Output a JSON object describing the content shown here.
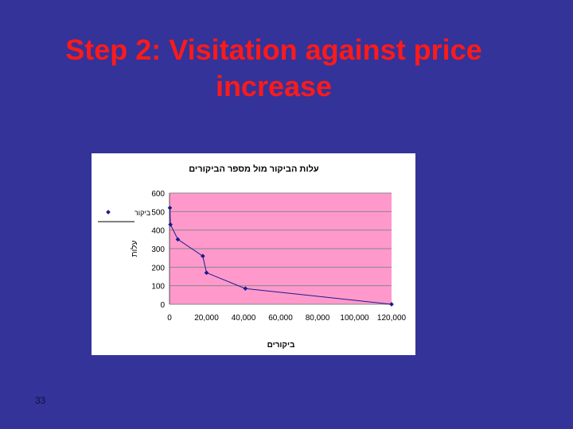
{
  "slide": {
    "title_line1": "Step 2: Visitation against price",
    "title_line2": "increase",
    "page_number": "33"
  },
  "colors": {
    "background": "#333399",
    "title": "#ff1a1a",
    "plot_area": "#ff99cc",
    "series": "#1a1a8c"
  },
  "chart_data": {
    "type": "scatter",
    "title": "עלות הביקור מול מספר הביקורים",
    "xlabel": "ביקורים",
    "ylabel": "עלות",
    "xlim": [
      0,
      120000
    ],
    "ylim": [
      0,
      600
    ],
    "x_ticks": [
      0,
      20000,
      40000,
      60000,
      80000,
      100000,
      120000
    ],
    "x_tick_labels": [
      "0",
      "20,000",
      "40,000",
      "60,000",
      "80,000",
      "100,000",
      "120,000"
    ],
    "y_ticks": [
      0,
      100,
      200,
      300,
      400,
      500,
      600
    ],
    "y_tick_labels": [
      "0",
      "100",
      "200",
      "300",
      "400",
      "500",
      "600"
    ],
    "grid": true,
    "legend": "left",
    "series": [
      {
        "name": "ביקור",
        "points": [
          {
            "x": 200,
            "y": 520
          },
          {
            "x": 500,
            "y": 430
          },
          {
            "x": 4500,
            "y": 350
          },
          {
            "x": 18000,
            "y": 260
          },
          {
            "x": 20000,
            "y": 170
          },
          {
            "x": 41000,
            "y": 85
          },
          {
            "x": 120000,
            "y": 0
          }
        ],
        "trendline": [
          {
            "x": 200,
            "y": 520
          },
          {
            "x": 500,
            "y": 430
          },
          {
            "x": 4500,
            "y": 350
          },
          {
            "x": 18000,
            "y": 260
          },
          {
            "x": 20000,
            "y": 170
          },
          {
            "x": 41000,
            "y": 85
          },
          {
            "x": 120000,
            "y": 0
          }
        ]
      }
    ]
  }
}
